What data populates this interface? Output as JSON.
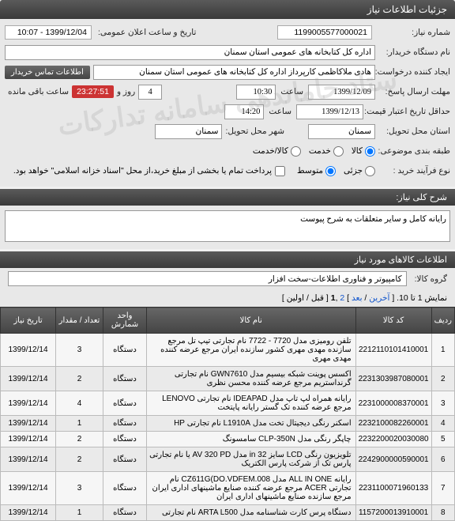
{
  "header": {
    "title": "جزئیات اطلاعات نیاز"
  },
  "info": {
    "need_no_label": "شماره نیاز:",
    "need_no": "1199005577000021",
    "announce_label": "تاریخ و ساعت اعلان عمومی:",
    "announce_value": "1399/12/04 - 10:07",
    "buyer_label": "نام دستگاه خریدار:",
    "buyer": "اداره کل کتابخانه های عمومی استان سمنان",
    "creator_label": "ایجاد کننده درخواست:",
    "creator": "هادی ملاکاظمی کارپرداز اداره کل کتابخانه های عمومی استان سمنان",
    "contact_btn": "اطلاعات تماس خریدار",
    "deadline_label": "مهلت ارسال پاسخ:",
    "deadline_date": "1399/12/09",
    "deadline_hour_label": "ساعت",
    "deadline_hour": "10:30",
    "remaining_days": "4",
    "remaining_days_label": "روز و",
    "timer": "23:27:51",
    "remaining_label": "ساعت باقی مانده",
    "credit_label": "حداقل تاریخ اعتبار قیمت: تا تاریخ",
    "credit_date": "1399/12/13",
    "credit_hour_label": "ساعت",
    "credit_hour": "14:20",
    "deliver_prov_label": "استان محل تحویل:",
    "deliver_prov": "سمنان",
    "deliver_city_label": "شهر محل تحویل:",
    "deliver_city": "سمنان",
    "category_label": "طبقه بندی موضوعی:",
    "cat_goods": "کالا",
    "cat_service": "خدمت",
    "cat_goods_service": "کالا/خدمت",
    "process_label": "نوع فرآیند خرید :",
    "proc_small": "جزئی",
    "proc_medium": "متوسط",
    "payment_note": "پرداخت تمام یا بخشی از مبلغ خرید،از محل \"اسناد خزانه اسلامی\" خواهد بود."
  },
  "sections": {
    "desc_title": "شرح کلی نیاز:",
    "desc_value": "رایانه کامل و سایر متعلقات به شرح پیوست",
    "items_title": "اطلاعات کالاهای مورد نیاز",
    "group_label": "گروه کالا:",
    "group_value": "کامپیوتر و فناوری اطلاعات-سخت افزار"
  },
  "pager": {
    "text_pre": "نمایش 1 تا 10. [ ",
    "prev": "آخرین",
    "sep1": " / ",
    "next": "بعد",
    "sep2": " ] ",
    "p2": "2",
    "comma": " ,",
    "p1": "1",
    "text_post": " [ قبل / اولین ]"
  },
  "table": {
    "headers": {
      "idx": "ردیف",
      "code": "کد کالا",
      "name": "نام کالا",
      "unit": "واحد شمارش",
      "qty": "تعداد / مقدار",
      "date": "تاریخ نیاز"
    },
    "rows": [
      {
        "idx": "1",
        "code": "2212110101410001",
        "name": "تلفن رومیزی مدل 7720 - 7722 نام تجارتی تیپ تل مرجع سازنده مهدی مهری کشور سازنده ایران مرجع عرضه کننده مهدی مهری",
        "unit": "دستگاه",
        "qty": "3",
        "date": "1399/12/14"
      },
      {
        "idx": "2",
        "code": "2231303987080001",
        "name": "اکسس پوینت شبکه بیسیم مدل GWN7610 نام تجارتی گرنداستریم مرجع عرضه کننده محسن نظری",
        "unit": "دستگاه",
        "qty": "2",
        "date": "1399/12/14"
      },
      {
        "idx": "3",
        "code": "2231000008370001",
        "name": "رایانه همراه لپ تاپ مدل IDEAPAD نام تجارتی LENOVO مرجع عرضه کننده تک گستر رایانه پایتخت",
        "unit": "دستگاه",
        "qty": "4",
        "date": "1399/12/14"
      },
      {
        "idx": "4",
        "code": "2232100082260001",
        "name": "اسکنر رنگی دیجیتال تخت مدل L1910A نام تجارتی HP",
        "unit": "دستگاه",
        "qty": "1",
        "date": "1399/12/14"
      },
      {
        "idx": "5",
        "code": "2232200020030080",
        "name": "چاپگر رنگی مدل CLP-350N سامسونگ",
        "unit": "دستگاه",
        "qty": "2",
        "date": "1399/12/14"
      },
      {
        "idx": "6",
        "code": "2242900000590001",
        "name": "تلویزیون رنگی LCD سایز 32 in مدل AV 320 PD یا نام تجارتی پارس تک از شرکت پارس الکتریک",
        "unit": "دستگاه",
        "qty": "2",
        "date": "1399/12/14"
      },
      {
        "idx": "7",
        "code": "2231100071960133",
        "name": "رایانه ALL IN ONE مدل CZ611G(DO.VDFEM.008 نام تجارتی ACER مرجع عرضه کننده صنایع ماشینهای اداری ایران مرجع سازنده صنایع ماشینهای اداری ایران",
        "unit": "دستگاه",
        "qty": "3",
        "date": "1399/12/14"
      },
      {
        "idx": "8",
        "code": "1157200013910001",
        "name": "دستگاه پرس کارت شناسنامه مدل ARTA L500 نام تجارتی",
        "unit": "دستگاه",
        "qty": "1",
        "date": "1399/12/14"
      }
    ]
  }
}
